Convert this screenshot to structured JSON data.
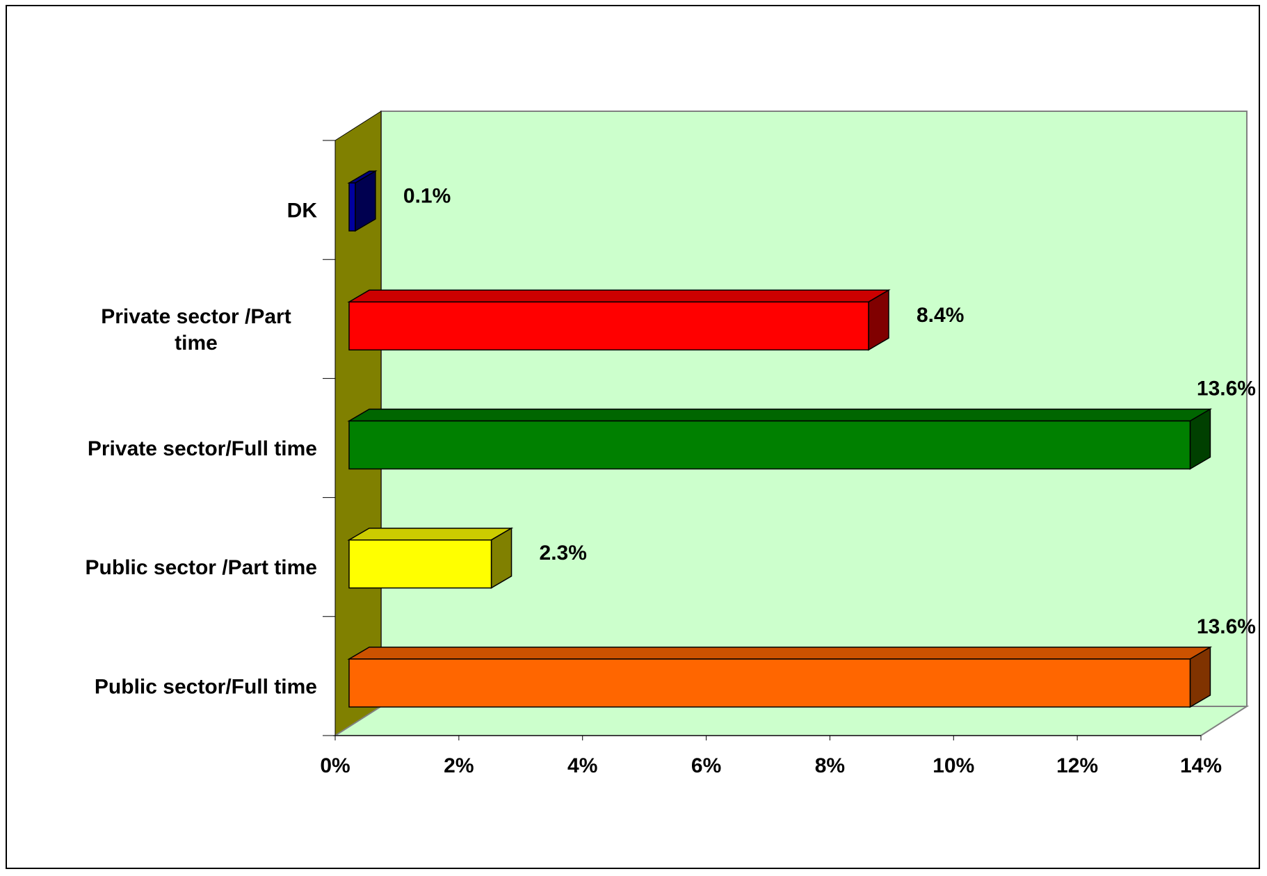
{
  "chart_data": {
    "type": "bar",
    "orientation": "horizontal",
    "style": "3d",
    "title": "",
    "xlabel": "",
    "ylabel": "",
    "xlim": [
      0,
      14
    ],
    "x_ticks": [
      "0%",
      "2%",
      "4%",
      "6%",
      "8%",
      "10%",
      "12%",
      "14%"
    ],
    "legend": "none",
    "grid": false,
    "wall_color": "#ccffcc",
    "side_wall_color": "#808000",
    "categories": [
      {
        "label_lines": [
          "DK"
        ],
        "value": 0.1,
        "label": "0.1%",
        "color": "#0000a0"
      },
      {
        "label_lines": [
          "Private sector /Part",
          "time"
        ],
        "value": 8.4,
        "label": "8.4%",
        "color": "#ff0000"
      },
      {
        "label_lines": [
          "Private sector/Full time"
        ],
        "value": 13.6,
        "label": "13.6%",
        "color": "#008000"
      },
      {
        "label_lines": [
          "Public sector /Part time"
        ],
        "value": 2.3,
        "label": "2.3%",
        "color": "#ffff00"
      },
      {
        "label_lines": [
          "Public sector/Full time"
        ],
        "value": 13.6,
        "label": "13.6%",
        "color": "#ff6600"
      }
    ]
  }
}
